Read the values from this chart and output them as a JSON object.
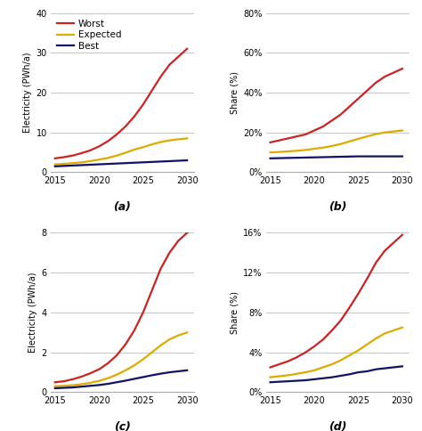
{
  "x": [
    2015,
    2016,
    2017,
    2018,
    2019,
    2020,
    2021,
    2022,
    2023,
    2024,
    2025,
    2026,
    2027,
    2028,
    2029,
    2030
  ],
  "colors": {
    "worst": "#cc2222",
    "expected": "#ddaa00",
    "best": "#111166"
  },
  "panel_a": {
    "worst": [
      3.5,
      3.8,
      4.2,
      4.8,
      5.5,
      6.5,
      7.8,
      9.5,
      11.5,
      14.0,
      17.0,
      20.5,
      24.0,
      27.0,
      29.0,
      31.0
    ],
    "expected": [
      2.0,
      2.1,
      2.3,
      2.5,
      2.8,
      3.2,
      3.6,
      4.2,
      4.9,
      5.7,
      6.3,
      7.0,
      7.6,
      8.0,
      8.3,
      8.5
    ],
    "best": [
      1.5,
      1.6,
      1.7,
      1.8,
      1.9,
      2.0,
      2.1,
      2.2,
      2.3,
      2.4,
      2.5,
      2.6,
      2.7,
      2.8,
      2.9,
      3.0
    ],
    "ylabel": "Electricity (PWh/a)",
    "ylim": [
      0,
      40
    ],
    "yticks": [
      0,
      10,
      20,
      30,
      40
    ],
    "ytick_labels": [
      "0",
      "10",
      "20",
      "30",
      "40"
    ],
    "label": "(a)"
  },
  "panel_b": {
    "worst": [
      15,
      16,
      17,
      18,
      19,
      21,
      23,
      26,
      29,
      33,
      37,
      41,
      45,
      48,
      50,
      52
    ],
    "expected": [
      10,
      10.2,
      10.5,
      10.8,
      11.2,
      11.8,
      12.4,
      13.2,
      14.2,
      15.5,
      16.8,
      18.0,
      19.2,
      20.0,
      20.5,
      21.0
    ],
    "best": [
      7,
      7.1,
      7.2,
      7.3,
      7.4,
      7.5,
      7.6,
      7.7,
      7.8,
      7.9,
      8.0,
      8.0,
      8.0,
      8.0,
      8.0,
      8.0
    ],
    "ylabel": "Share (%)",
    "ylim": [
      0,
      80
    ],
    "yticks": [
      0,
      20,
      40,
      60,
      80
    ],
    "ytick_labels": [
      "0%",
      "20%",
      "40%",
      "60%",
      "80%"
    ],
    "label": "(b)"
  },
  "panel_c": {
    "worst": [
      0.5,
      0.55,
      0.65,
      0.78,
      0.95,
      1.15,
      1.45,
      1.85,
      2.4,
      3.1,
      4.0,
      5.1,
      6.2,
      7.0,
      7.6,
      8.0
    ],
    "expected": [
      0.3,
      0.32,
      0.35,
      0.4,
      0.47,
      0.57,
      0.7,
      0.88,
      1.1,
      1.35,
      1.65,
      2.0,
      2.35,
      2.65,
      2.85,
      3.0
    ],
    "best": [
      0.2,
      0.22,
      0.24,
      0.28,
      0.32,
      0.36,
      0.42,
      0.5,
      0.58,
      0.67,
      0.76,
      0.85,
      0.93,
      1.0,
      1.05,
      1.1
    ],
    "ylabel": "Electricity (PWh/a)",
    "ylim": [
      0,
      8
    ],
    "yticks": [
      0,
      2,
      4,
      6,
      8
    ],
    "ytick_labels": [
      "0",
      "2",
      "4",
      "6",
      "8"
    ],
    "label": "(c)"
  },
  "panel_d": {
    "worst": [
      2.5,
      2.8,
      3.1,
      3.5,
      4.0,
      4.6,
      5.3,
      6.2,
      7.2,
      8.5,
      9.9,
      11.4,
      13.0,
      14.2,
      15.0,
      15.8
    ],
    "expected": [
      1.5,
      1.6,
      1.7,
      1.85,
      2.0,
      2.2,
      2.5,
      2.8,
      3.2,
      3.7,
      4.2,
      4.8,
      5.4,
      5.9,
      6.2,
      6.5
    ],
    "best": [
      1.0,
      1.05,
      1.1,
      1.15,
      1.2,
      1.3,
      1.4,
      1.5,
      1.65,
      1.8,
      2.0,
      2.1,
      2.3,
      2.4,
      2.5,
      2.6
    ],
    "ylabel": "Share (%)",
    "ylim": [
      0,
      16
    ],
    "yticks": [
      0,
      4,
      8,
      12,
      16
    ],
    "ytick_labels": [
      "0%",
      "4%",
      "8%",
      "12%",
      "16%"
    ],
    "label": "(d)"
  },
  "xticks": [
    2015,
    2020,
    2025,
    2030
  ],
  "xlim": [
    2014.5,
    2030.8
  ],
  "legend_labels": [
    "Worst",
    "Expected",
    "Best"
  ],
  "bg_color": "#ffffff",
  "grid_color": "#bbbbbb",
  "spine_color": "#aaaaaa"
}
